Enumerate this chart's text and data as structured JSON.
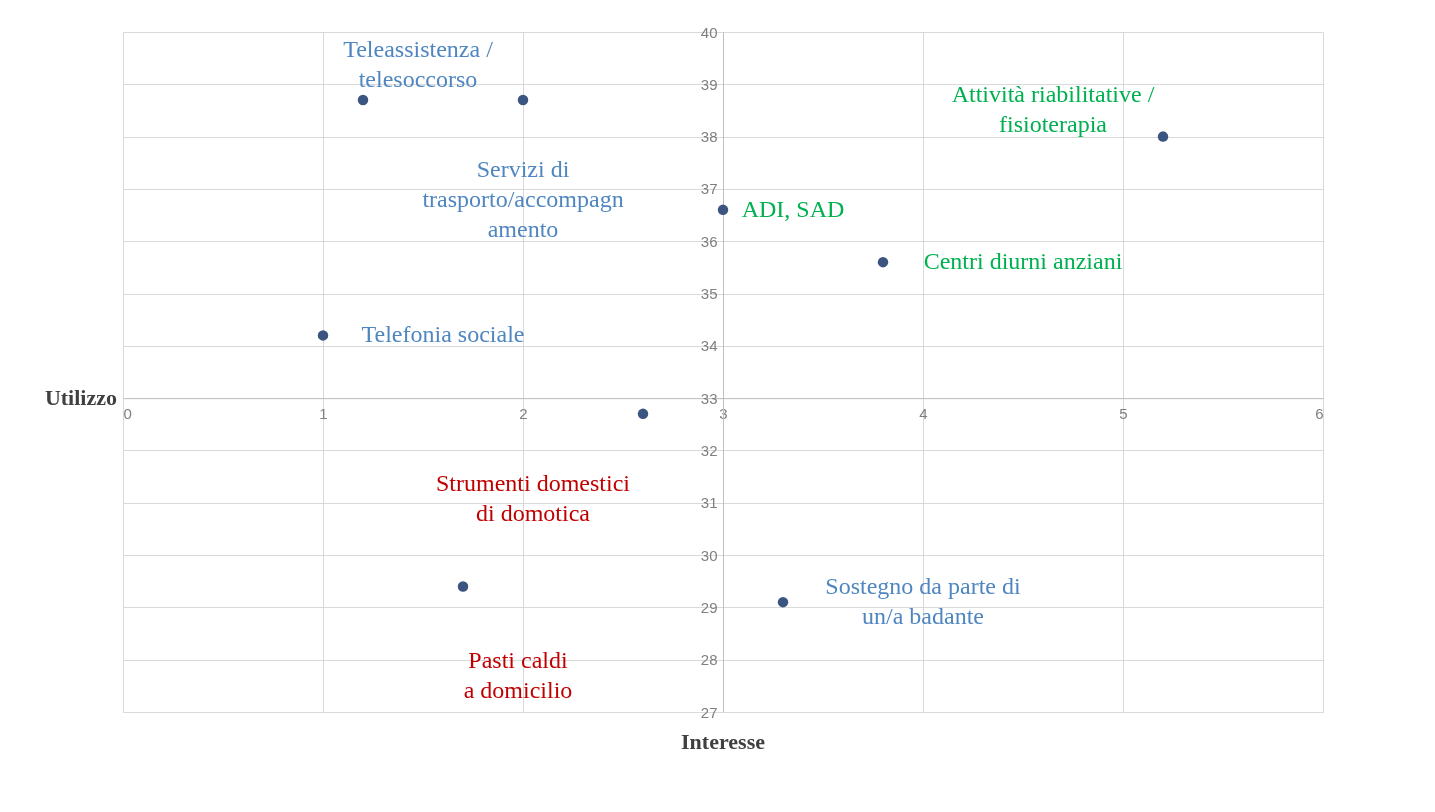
{
  "chart_data": {
    "type": "scatter",
    "xlabel": "Interesse",
    "ylabel": "Utilizzo",
    "xlim": [
      0,
      6
    ],
    "xticks": [
      0,
      1,
      2,
      3,
      4,
      5,
      6
    ],
    "ylim": [
      27,
      40
    ],
    "yticks": [
      27,
      28,
      29,
      30,
      31,
      32,
      33,
      34,
      35,
      36,
      37,
      38,
      39,
      40
    ],
    "grid": true,
    "marker": "circle",
    "series": [
      {
        "color": "#3b5480",
        "x": [
          1.2,
          2.0,
          5.2,
          3.0,
          3.8,
          1.0,
          2.6,
          1.7,
          3.3
        ],
        "values": [
          38.7,
          38.7,
          38.0,
          36.6,
          35.6,
          34.2,
          32.7,
          29.4,
          29.1
        ]
      }
    ],
    "annotations": [
      {
        "text": "Teleassistenza /\ntelesoccorso",
        "x": 1.2,
        "y": 38.7
      },
      {
        "text": "Servizi di\ntrasporto/accompagn\namento",
        "x": 2.0,
        "y": 38.7
      },
      {
        "text": "Attività riabilitative /\nfisioterapia",
        "x": 5.2,
        "y": 38.0
      },
      {
        "text": "ADI, SAD",
        "x": 3.0,
        "y": 36.6
      },
      {
        "text": "Centri diurni anziani",
        "x": 3.8,
        "y": 35.6
      },
      {
        "text": "Telefonia sociale",
        "x": 1.0,
        "y": 34.2
      },
      {
        "text": "Strumenti domestici\ndi domotica",
        "x": 2.6,
        "y": 32.7
      },
      {
        "text": "Pasti caldi\na domicilio",
        "x": 1.7,
        "y": 29.4
      },
      {
        "text": "Sostegno da parte di\nun/a badante",
        "x": 3.3,
        "y": 29.1
      }
    ]
  }
}
